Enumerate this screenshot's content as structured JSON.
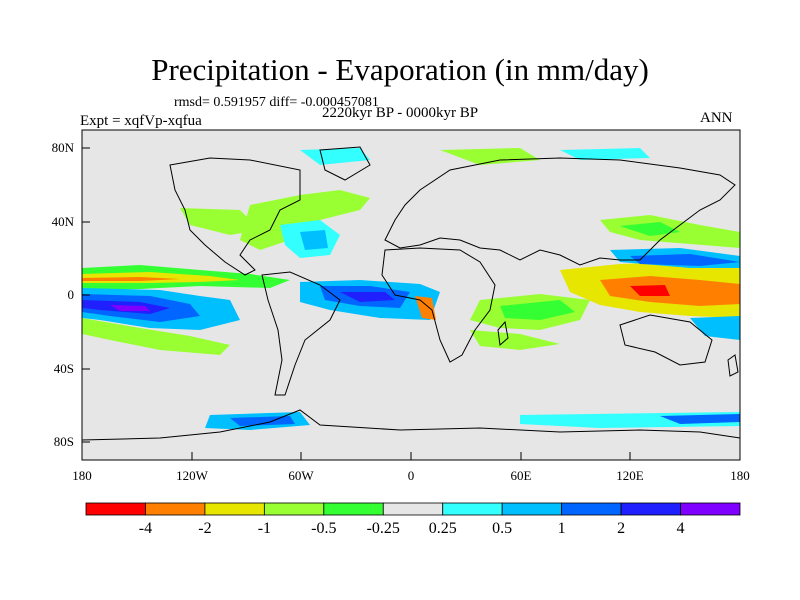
{
  "title": "Precipitation - Evaporation (in mm/day)",
  "stats": "rmsd= 0.591957 diff= -0.000457081",
  "period": "2220kyr BP - 0000kyr BP",
  "experiment": "Expt = xqfVp-xqfua",
  "season": "ANN",
  "lat_labels": [
    "80N",
    "40N",
    "0",
    "40S",
    "80S"
  ],
  "lon_labels": [
    "180",
    "120W",
    "60W",
    "0",
    "60E",
    "120E",
    "180"
  ],
  "colorbar": {
    "labels": [
      "-4",
      "-2",
      "-1",
      "-0.5",
      "-0.25",
      "0.25",
      "0.5",
      "1",
      "2",
      "4"
    ],
    "colors": [
      "#ff0000",
      "#ff8000",
      "#e6e600",
      "#99ff33",
      "#33ff33",
      "#e6e6e6",
      "#33ffff",
      "#00bfff",
      "#0066ff",
      "#2020ff",
      "#8000ff"
    ]
  }
}
